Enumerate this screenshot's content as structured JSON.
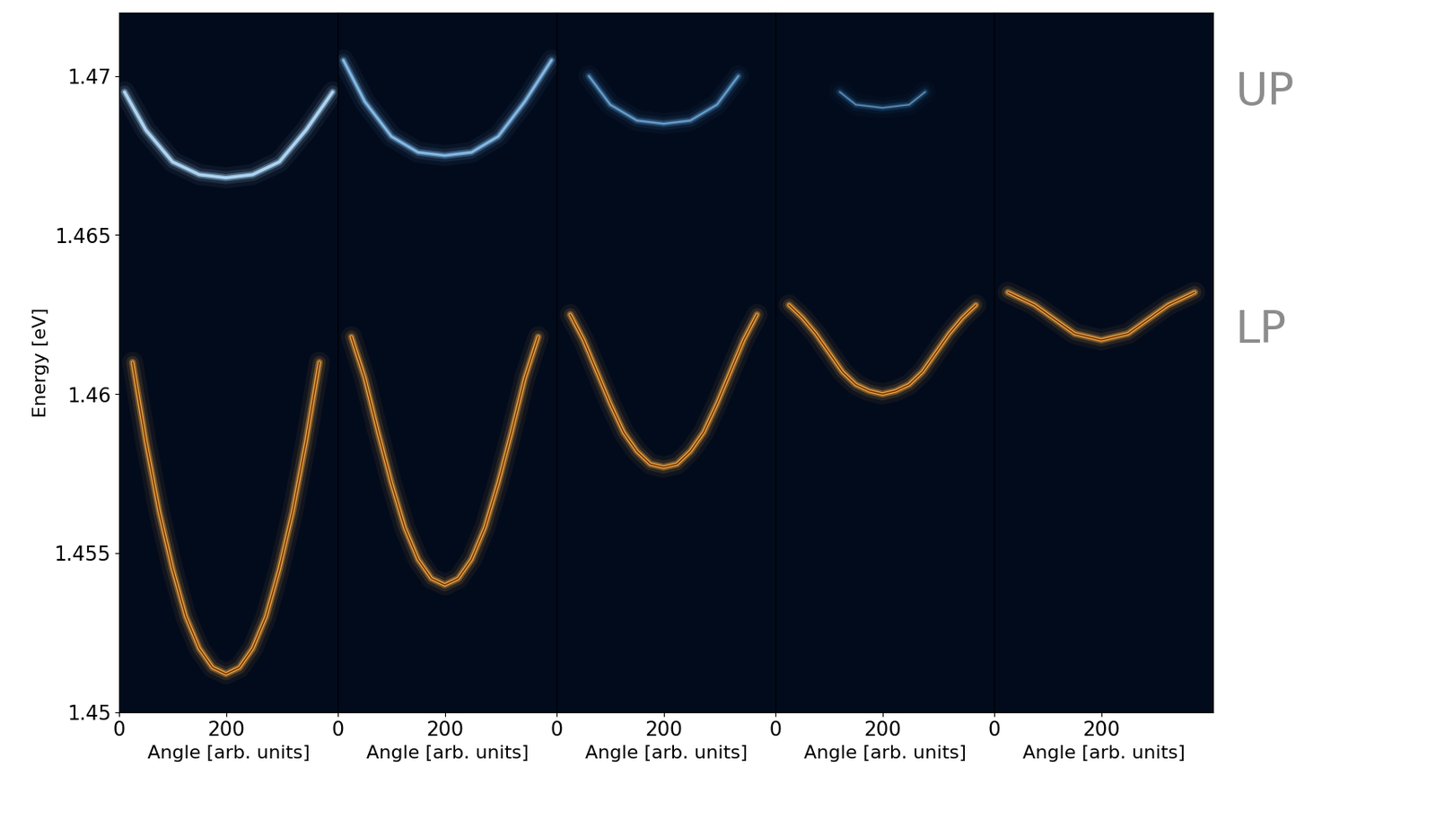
{
  "chart_data": [
    {
      "type": "line",
      "xlabel": "Angle [arb. units]",
      "ylabel": "Energy [eV]",
      "xlim": [
        0,
        410
      ],
      "xticks": [
        0,
        200
      ],
      "ylim": [
        1.45,
        1.472
      ],
      "yticks": [
        1.45,
        1.455,
        1.46,
        1.465,
        1.47
      ],
      "tick_labels": true,
      "series": [
        {
          "name": "LP",
          "color": "#ffb347",
          "x": [
            25,
            50,
            75,
            100,
            125,
            150,
            175,
            200,
            225,
            250,
            275,
            300,
            325,
            350,
            375
          ],
          "values": [
            1.461,
            1.4585,
            1.4563,
            1.4545,
            1.453,
            1.452,
            1.4514,
            1.4512,
            1.4514,
            1.452,
            1.453,
            1.4545,
            1.4563,
            1.4585,
            1.461
          ]
        },
        {
          "name": "UP",
          "color": "#a8d4f5",
          "x": [
            10,
            50,
            100,
            150,
            200,
            250,
            300,
            350,
            400
          ],
          "values": [
            1.4695,
            1.4683,
            1.4673,
            1.4669,
            1.4668,
            1.4669,
            1.4673,
            1.4683,
            1.4695
          ]
        }
      ]
    },
    {
      "type": "line",
      "xlabel": "Angle [arb. units]",
      "xlim": [
        0,
        410
      ],
      "xticks": [
        0,
        200
      ],
      "ylim": [
        1.45,
        1.472
      ],
      "yticks": [
        1.45,
        1.455,
        1.46,
        1.465,
        1.47
      ],
      "tick_labels": "x",
      "series": [
        {
          "name": "LP",
          "color": "#ffb347",
          "x": [
            25,
            50,
            75,
            100,
            125,
            150,
            175,
            200,
            225,
            250,
            275,
            300,
            325,
            350,
            375
          ],
          "values": [
            1.4618,
            1.4605,
            1.4588,
            1.4572,
            1.4558,
            1.4548,
            1.4542,
            1.454,
            1.4542,
            1.4548,
            1.4558,
            1.4572,
            1.4588,
            1.4605,
            1.4618
          ]
        },
        {
          "name": "UP",
          "color": "#6fa8d8",
          "x": [
            10,
            50,
            100,
            150,
            200,
            250,
            300,
            350,
            400
          ],
          "values": [
            1.4705,
            1.4692,
            1.4681,
            1.4676,
            1.4675,
            1.4676,
            1.4681,
            1.4692,
            1.4705
          ]
        }
      ]
    },
    {
      "type": "line",
      "xlabel": "Angle [arb. units]",
      "xlim": [
        0,
        410
      ],
      "xticks": [
        0,
        200
      ],
      "ylim": [
        1.45,
        1.472
      ],
      "yticks": [
        1.45,
        1.455,
        1.46,
        1.465,
        1.47
      ],
      "tick_labels": "x",
      "series": [
        {
          "name": "LP",
          "color": "#ffb347",
          "x": [
            25,
            50,
            75,
            100,
            125,
            150,
            175,
            200,
            225,
            250,
            275,
            300,
            325,
            350,
            375
          ],
          "values": [
            1.4625,
            1.4617,
            1.4607,
            1.4597,
            1.4588,
            1.4582,
            1.4578,
            1.4577,
            1.4578,
            1.4582,
            1.4588,
            1.4597,
            1.4607,
            1.4617,
            1.4625
          ]
        },
        {
          "name": "UP",
          "color": "#3f78a8",
          "x": [
            60,
            100,
            150,
            200,
            250,
            300,
            340
          ],
          "values": [
            1.47,
            1.4691,
            1.4686,
            1.4685,
            1.4686,
            1.4691,
            1.47
          ]
        }
      ]
    },
    {
      "type": "line",
      "xlabel": "Angle [arb. units]",
      "xlim": [
        0,
        410
      ],
      "xticks": [
        0,
        200
      ],
      "ylim": [
        1.45,
        1.472
      ],
      "yticks": [
        1.45,
        1.455,
        1.46,
        1.465,
        1.47
      ],
      "tick_labels": "x",
      "series": [
        {
          "name": "LP",
          "color": "#ffb347",
          "x": [
            25,
            50,
            75,
            100,
            125,
            150,
            175,
            200,
            225,
            250,
            275,
            300,
            325,
            350,
            375
          ],
          "values": [
            1.4628,
            1.4624,
            1.4619,
            1.4613,
            1.4607,
            1.4603,
            1.4601,
            1.46,
            1.4601,
            1.4603,
            1.4607,
            1.4613,
            1.4619,
            1.4624,
            1.4628
          ]
        },
        {
          "name": "UP",
          "color": "#22507a",
          "x": [
            120,
            150,
            200,
            250,
            280
          ],
          "values": [
            1.4695,
            1.4691,
            1.469,
            1.4691,
            1.4695
          ]
        }
      ]
    },
    {
      "type": "line",
      "xlabel": "Angle [arb. units]",
      "xlim": [
        0,
        410
      ],
      "xticks": [
        0,
        200
      ],
      "ylim": [
        1.45,
        1.472
      ],
      "yticks": [
        1.45,
        1.455,
        1.46,
        1.465,
        1.47
      ],
      "tick_labels": "x",
      "annotations": [
        {
          "text": "UP",
          "y": 1.4695
        },
        {
          "text": "LP",
          "y": 1.462
        }
      ],
      "series": [
        {
          "name": "LP",
          "color": "#ffb347",
          "x": [
            25,
            50,
            75,
            100,
            125,
            150,
            175,
            200,
            225,
            250,
            275,
            300,
            325,
            350,
            375
          ],
          "values": [
            1.4632,
            1.463,
            1.4628,
            1.4625,
            1.4622,
            1.4619,
            1.4618,
            1.4617,
            1.4618,
            1.4619,
            1.4622,
            1.4625,
            1.4628,
            1.463,
            1.4632
          ]
        }
      ]
    }
  ]
}
